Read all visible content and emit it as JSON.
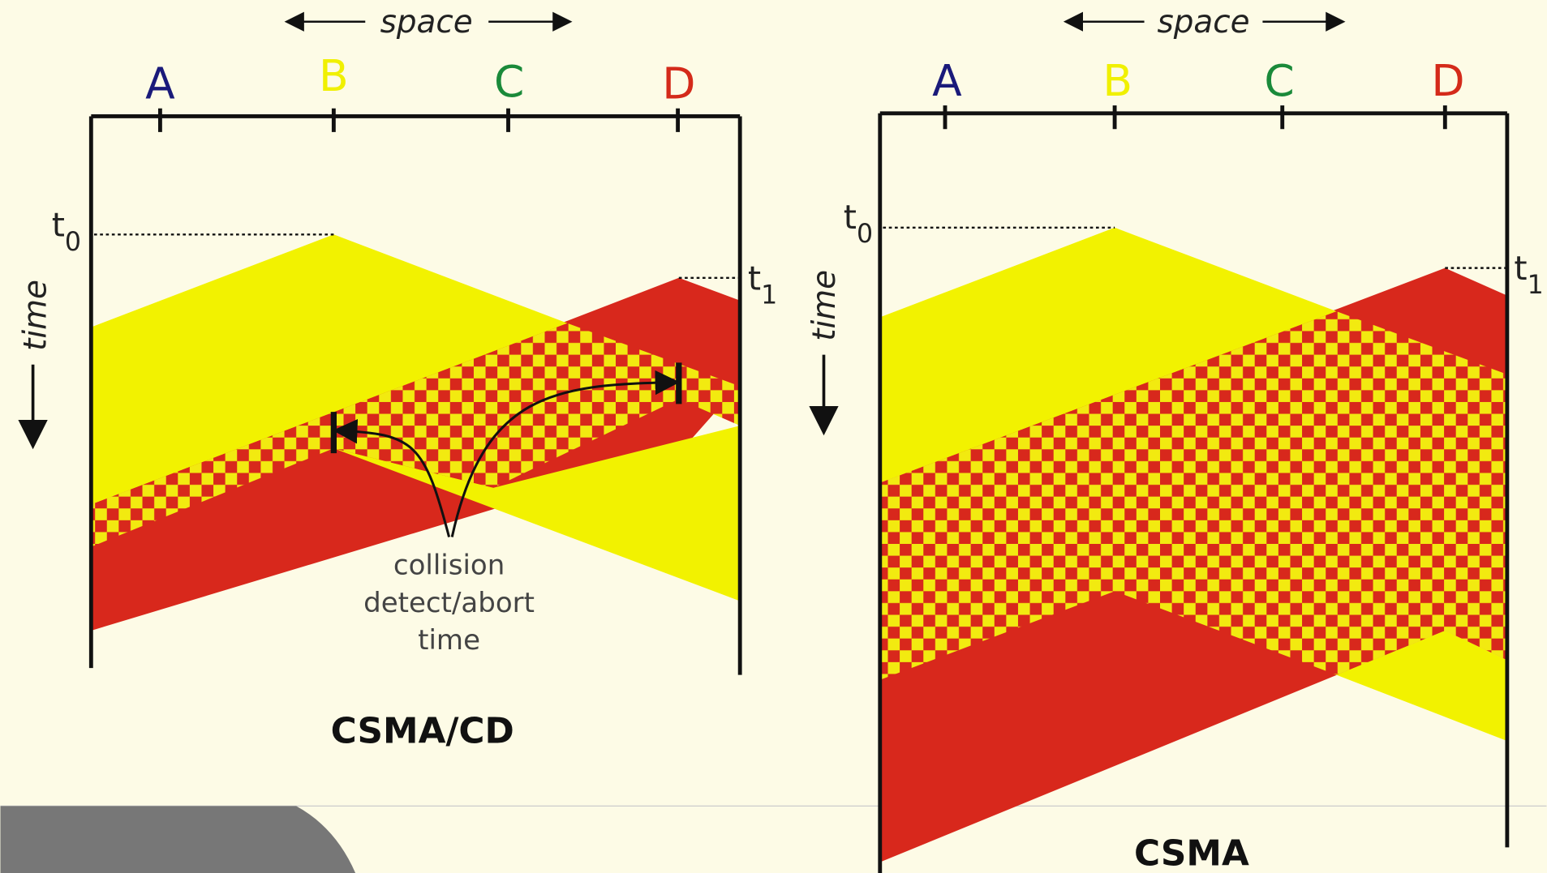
{
  "diagrams": [
    {
      "space_label": "space",
      "time_label": "time",
      "stations": [
        "A",
        "B",
        "C",
        "D"
      ],
      "times": [
        {
          "letter": "t",
          "subscript": "0"
        },
        {
          "letter": "t",
          "subscript": "1"
        }
      ],
      "annotation": [
        "collision",
        "detect/abort",
        "time"
      ],
      "caption": "CSMA/CD"
    },
    {
      "space_label": "space",
      "time_label": "time",
      "stations": [
        "A",
        "B",
        "C",
        "D"
      ],
      "times": [
        {
          "letter": "t",
          "subscript": "0"
        },
        {
          "letter": "t",
          "subscript": "1"
        }
      ],
      "caption": "CSMA"
    }
  ]
}
